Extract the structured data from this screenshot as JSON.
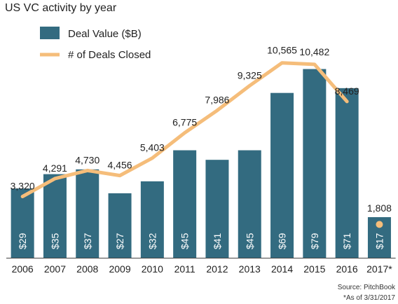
{
  "colors": {
    "bar": "#336b80",
    "line": "#f5bd7a",
    "text": "#222222",
    "axis": "#444444"
  },
  "chart_data": {
    "type": "bar",
    "title": "US VC activity by year",
    "categories": [
      "2006",
      "2007",
      "2008",
      "2009",
      "2010",
      "2011",
      "2012",
      "2013",
      "2014",
      "2015",
      "2016",
      "2017*"
    ],
    "series": [
      {
        "name": "Deal Value ($B)",
        "type": "bar",
        "values": [
          29,
          35,
          37,
          27,
          32,
          45,
          41,
          45,
          69,
          79,
          71,
          17
        ],
        "value_labels": [
          "$29",
          "$35",
          "$37",
          "$27",
          "$32",
          "$45",
          "$41",
          "$45",
          "$69",
          "$79",
          "$71",
          "$17"
        ]
      },
      {
        "name": "# of Deals Closed",
        "type": "line",
        "values": [
          3320,
          4291,
          4730,
          4456,
          5403,
          6775,
          7986,
          9325,
          10565,
          10482,
          8469,
          1808
        ],
        "value_labels": [
          "3,320",
          "4,291",
          "4,730",
          "4,456",
          "5,403",
          "6,775",
          "7,986",
          "9,325",
          "10,565",
          "10,482",
          "8,469",
          "1,808"
        ],
        "line_through": 11,
        "point_only_last": true
      }
    ],
    "ylim_bar": [
      0,
      95
    ],
    "ylim_line": [
      0,
      12300
    ],
    "grid": false,
    "legend": "top-left"
  },
  "footer": {
    "source": "Source: PitchBook",
    "note": "*As of 3/31/2017"
  }
}
